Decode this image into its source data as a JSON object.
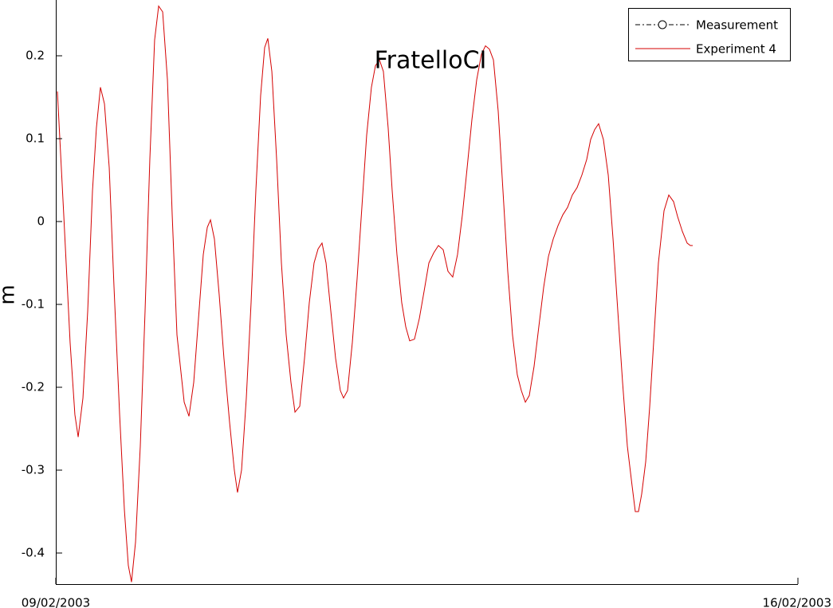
{
  "chart_data": {
    "type": "line",
    "title": "FratelloCI",
    "ylabel": "m",
    "xlim": [
      0,
      7
    ],
    "xticks": [
      {
        "value": 0,
        "label": "09/02/2003"
      },
      {
        "value": 7,
        "label": "16/02/2003"
      }
    ],
    "ylim": [
      -0.4375,
      0.2673
    ],
    "yticks": [
      {
        "value": 0.2,
        "label": "0.2"
      },
      {
        "value": 0.1,
        "label": "0.1"
      },
      0,
      {
        "value": -0.1,
        "label": "-0.1"
      },
      {
        "value": -0.2,
        "label": "-0.2"
      },
      {
        "value": -0.3,
        "label": "-0.3"
      },
      {
        "value": -0.4,
        "label": "-0.4"
      }
    ],
    "grid": false,
    "legend": "upper right",
    "series": [
      {
        "name": "Measurement",
        "color": "#000000",
        "marker": "o",
        "linestyle": "-.",
        "x": [],
        "values": []
      },
      {
        "name": "Experiment 4",
        "color": "#d40000",
        "linestyle": "-",
        "x": [
          0.015,
          0.075,
          0.135,
          0.18,
          0.211,
          0.256,
          0.301,
          0.346,
          0.383,
          0.421,
          0.459,
          0.504,
          0.549,
          0.602,
          0.647,
          0.684,
          0.714,
          0.752,
          0.797,
          0.842,
          0.887,
          0.932,
          0.97,
          1.008,
          1.053,
          1.098,
          1.143,
          1.211,
          1.256,
          1.301,
          1.346,
          1.391,
          1.429,
          1.459,
          1.496,
          1.541,
          1.586,
          1.639,
          1.684,
          1.714,
          1.752,
          1.797,
          1.842,
          1.887,
          1.932,
          1.97,
          2.0,
          2.038,
          2.083,
          2.128,
          2.173,
          2.218,
          2.256,
          2.301,
          2.346,
          2.391,
          2.436,
          2.474,
          2.511,
          2.549,
          2.594,
          2.639,
          2.684,
          2.714,
          2.752,
          2.797,
          2.842,
          2.887,
          2.932,
          2.977,
          3.015,
          3.053,
          3.09,
          3.135,
          3.173,
          3.218,
          3.263,
          3.301,
          3.338,
          3.383,
          3.429,
          3.474,
          3.519,
          3.564,
          3.609,
          3.654,
          3.699,
          3.744,
          3.789,
          3.835,
          3.88,
          3.925,
          3.97,
          4.015,
          4.053,
          4.09,
          4.128,
          4.173,
          4.218,
          4.263,
          4.308,
          4.353,
          4.391,
          4.429,
          4.466,
          4.511,
          4.556,
          4.602,
          4.647,
          4.692,
          4.737,
          4.782,
          4.827,
          4.872,
          4.917,
          4.962,
          5.008,
          5.045,
          5.083,
          5.12,
          5.165,
          5.211,
          5.256,
          5.301,
          5.346,
          5.391,
          5.436,
          5.466,
          5.496,
          5.526,
          5.564,
          5.602,
          5.639,
          5.684,
          5.737,
          5.782,
          5.827,
          5.865,
          5.91,
          5.955,
          5.985,
          6.008
        ],
        "values": [
          0.157,
          0.008,
          -0.146,
          -0.233,
          -0.26,
          -0.213,
          -0.108,
          0.037,
          0.113,
          0.162,
          0.142,
          0.065,
          -0.079,
          -0.233,
          -0.348,
          -0.415,
          -0.435,
          -0.387,
          -0.271,
          -0.108,
          0.075,
          0.219,
          0.26,
          0.253,
          0.171,
          0.008,
          -0.137,
          -0.218,
          -0.235,
          -0.194,
          -0.117,
          -0.04,
          -0.007,
          0.002,
          -0.021,
          -0.088,
          -0.165,
          -0.242,
          -0.3,
          -0.327,
          -0.3,
          -0.213,
          -0.098,
          0.037,
          0.152,
          0.21,
          0.221,
          0.181,
          0.075,
          -0.05,
          -0.137,
          -0.194,
          -0.23,
          -0.223,
          -0.165,
          -0.098,
          -0.05,
          -0.033,
          -0.026,
          -0.05,
          -0.108,
          -0.165,
          -0.204,
          -0.213,
          -0.204,
          -0.146,
          -0.069,
          0.017,
          0.104,
          0.162,
          0.188,
          0.195,
          0.181,
          0.113,
          0.037,
          -0.04,
          -0.098,
          -0.127,
          -0.144,
          -0.142,
          -0.117,
          -0.084,
          -0.05,
          -0.038,
          -0.029,
          -0.034,
          -0.06,
          -0.067,
          -0.04,
          0.008,
          0.065,
          0.123,
          0.171,
          0.202,
          0.212,
          0.208,
          0.195,
          0.133,
          0.037,
          -0.06,
          -0.137,
          -0.185,
          -0.204,
          -0.218,
          -0.21,
          -0.175,
          -0.127,
          -0.079,
          -0.042,
          -0.021,
          -0.005,
          0.008,
          0.017,
          0.032,
          0.041,
          0.056,
          0.075,
          0.099,
          0.111,
          0.118,
          0.099,
          0.056,
          -0.021,
          -0.108,
          -0.194,
          -0.271,
          -0.319,
          -0.35,
          -0.35,
          -0.329,
          -0.29,
          -0.223,
          -0.146,
          -0.05,
          0.013,
          0.032,
          0.024,
          0.006,
          -0.012,
          -0.026,
          -0.029,
          -0.029
        ]
      }
    ]
  }
}
